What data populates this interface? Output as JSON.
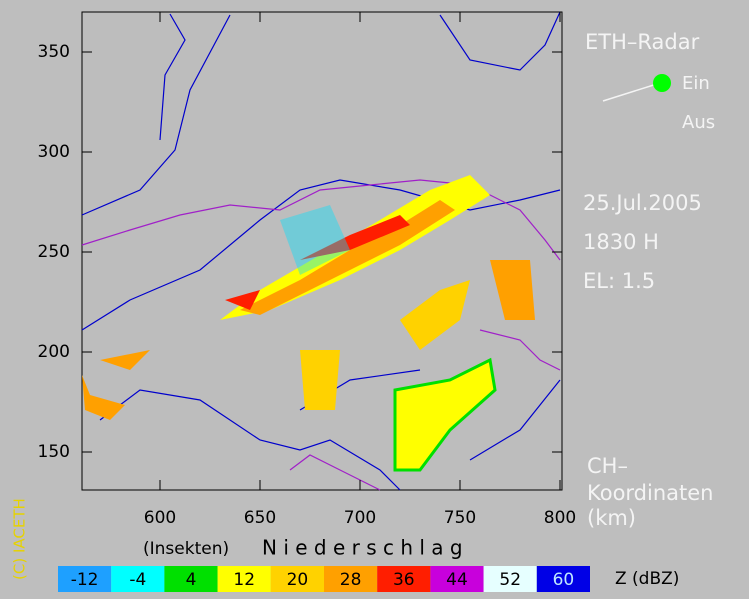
{
  "map": {
    "xlim": [
      561,
      801
    ],
    "ylim": [
      131,
      370
    ],
    "xticks": [
      600,
      650,
      700,
      750,
      800
    ],
    "yticks": [
      150,
      200,
      250,
      300,
      350
    ]
  },
  "title": "ETH–Radar",
  "toggle": {
    "on": "Ein",
    "off": "Aus"
  },
  "date": "25.Jul.2005",
  "time": "1830 H",
  "elevation": "EL: 1.5",
  "coordinates": [
    "CH–",
    "Koordinaten",
    "(km)"
  ],
  "legend": {
    "insects": "(Insekten)",
    "precipitation": "N i e d e r s c h l a g",
    "unit": "Z  (dBZ)",
    "levels": [
      {
        "value": -12,
        "color": "#1ea0ff"
      },
      {
        "value": -4,
        "color": "#00ffff"
      },
      {
        "value": 4,
        "color": "#00e000"
      },
      {
        "value": 12,
        "color": "#ffff00"
      },
      {
        "value": 20,
        "color": "#ffd200"
      },
      {
        "value": 28,
        "color": "#ffa000"
      },
      {
        "value": 36,
        "color": "#ff1e00"
      },
      {
        "value": 44,
        "color": "#c800dc"
      },
      {
        "value": 52,
        "color": "#e6ffff"
      },
      {
        "value": 60,
        "color": "#0000e6"
      }
    ]
  },
  "copyright": "(C) IACETH"
}
